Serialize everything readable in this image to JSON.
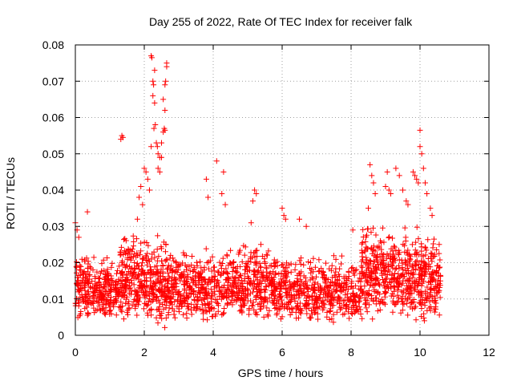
{
  "chart_data": {
    "type": "scatter",
    "title": "Day 255 of 2022, Rate Of TEC Index for receiver falk",
    "xlabel": "GPS time / hours",
    "ylabel": "ROTI / TECUs",
    "xlim": [
      0,
      12
    ],
    "ylim": [
      0,
      0.08
    ],
    "x_ticks": [
      "0",
      "2",
      "4",
      "6",
      "8",
      "10",
      "12"
    ],
    "y_ticks": [
      "0",
      "0.01",
      "0.02",
      "0.03",
      "0.04",
      "0.05",
      "0.06",
      "0.07",
      "0.08"
    ],
    "grid": true,
    "marker": "plus",
    "color": "#ff0000",
    "outliers": [
      [
        0.0,
        0.031
      ],
      [
        0.05,
        0.029
      ],
      [
        0.1,
        0.027
      ],
      [
        0.35,
        0.034
      ],
      [
        1.32,
        0.054
      ],
      [
        1.35,
        0.055
      ],
      [
        1.38,
        0.0545
      ],
      [
        1.8,
        0.032
      ],
      [
        1.85,
        0.038
      ],
      [
        1.9,
        0.041
      ],
      [
        1.95,
        0.036
      ],
      [
        2.0,
        0.046
      ],
      [
        2.05,
        0.045
      ],
      [
        2.1,
        0.043
      ],
      [
        2.15,
        0.04
      ],
      [
        2.2,
        0.052
      ],
      [
        2.2,
        0.077
      ],
      [
        2.22,
        0.0765
      ],
      [
        2.25,
        0.07
      ],
      [
        2.27,
        0.069
      ],
      [
        2.3,
        0.073
      ],
      [
        2.25,
        0.066
      ],
      [
        2.3,
        0.064
      ],
      [
        2.28,
        0.057
      ],
      [
        2.32,
        0.058
      ],
      [
        2.35,
        0.053
      ],
      [
        2.38,
        0.052
      ],
      [
        2.4,
        0.05
      ],
      [
        2.45,
        0.049
      ],
      [
        2.5,
        0.049
      ],
      [
        2.5,
        0.053
      ],
      [
        2.55,
        0.056
      ],
      [
        2.58,
        0.057
      ],
      [
        2.6,
        0.0565
      ],
      [
        2.55,
        0.065
      ],
      [
        2.6,
        0.062
      ],
      [
        2.6,
        0.069
      ],
      [
        2.62,
        0.07
      ],
      [
        2.65,
        0.074
      ],
      [
        2.65,
        0.075
      ],
      [
        2.4,
        0.046
      ],
      [
        2.45,
        0.045
      ],
      [
        3.8,
        0.043
      ],
      [
        3.85,
        0.038
      ],
      [
        4.1,
        0.048
      ],
      [
        4.25,
        0.039
      ],
      [
        4.3,
        0.045
      ],
      [
        4.35,
        0.036
      ],
      [
        5.2,
        0.04
      ],
      [
        5.25,
        0.039
      ],
      [
        5.15,
        0.037
      ],
      [
        5.1,
        0.031
      ],
      [
        6.0,
        0.035
      ],
      [
        6.05,
        0.033
      ],
      [
        6.1,
        0.032
      ],
      [
        6.5,
        0.032
      ],
      [
        6.7,
        0.03
      ],
      [
        8.05,
        0.029
      ],
      [
        8.5,
        0.035
      ],
      [
        8.55,
        0.047
      ],
      [
        8.6,
        0.044
      ],
      [
        8.65,
        0.042
      ],
      [
        8.7,
        0.039
      ],
      [
        9.0,
        0.041
      ],
      [
        9.05,
        0.045
      ],
      [
        9.1,
        0.04
      ],
      [
        9.15,
        0.039
      ],
      [
        9.3,
        0.046
      ],
      [
        9.4,
        0.044
      ],
      [
        9.5,
        0.04
      ],
      [
        9.6,
        0.037
      ],
      [
        9.65,
        0.036
      ],
      [
        9.8,
        0.045
      ],
      [
        9.85,
        0.044
      ],
      [
        9.9,
        0.043
      ],
      [
        9.95,
        0.042
      ],
      [
        10.0,
        0.0565
      ],
      [
        10.0,
        0.052
      ],
      [
        10.05,
        0.05
      ],
      [
        10.1,
        0.046
      ],
      [
        10.15,
        0.042
      ],
      [
        10.2,
        0.039
      ],
      [
        10.3,
        0.035
      ],
      [
        10.35,
        0.033
      ]
    ],
    "clusters": [
      {
        "x_start": 0.0,
        "x_end": 1.3,
        "low": 0.004,
        "high": 0.022,
        "count": 300
      },
      {
        "x_start": 1.3,
        "x_end": 2.7,
        "low": 0.002,
        "high": 0.028,
        "count": 380
      },
      {
        "x_start": 2.7,
        "x_end": 4.5,
        "low": 0.003,
        "high": 0.024,
        "count": 380
      },
      {
        "x_start": 4.5,
        "x_end": 6.2,
        "low": 0.003,
        "high": 0.026,
        "count": 380
      },
      {
        "x_start": 6.2,
        "x_end": 8.3,
        "low": 0.003,
        "high": 0.022,
        "count": 400
      },
      {
        "x_start": 8.3,
        "x_end": 9.2,
        "low": 0.004,
        "high": 0.03,
        "count": 240
      },
      {
        "x_start": 9.2,
        "x_end": 10.6,
        "low": 0.003,
        "high": 0.03,
        "count": 360
      }
    ]
  }
}
